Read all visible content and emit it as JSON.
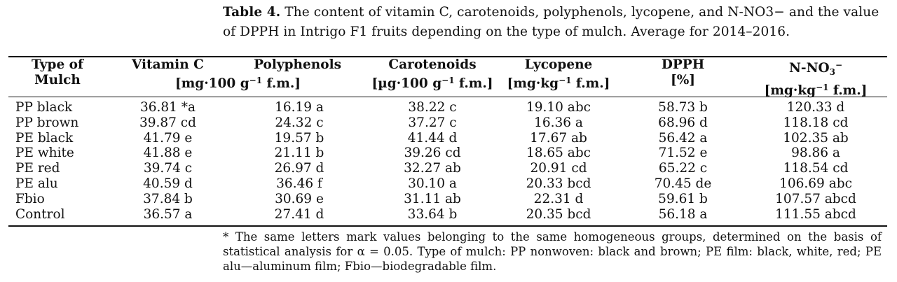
{
  "caption": {
    "label": "Table 4.",
    "text": "The content of vitamin C, carotenoids, polyphenols, lycopene, and N-NO3− and the value of DPPH in Intrigo F1 fruits depending on the type of mulch. Average for 2014–2016."
  },
  "table": {
    "headers": {
      "type_line1": "Type of",
      "type_line2": "Mulch",
      "vitc": "Vitamin C",
      "units_left": "[mg·100 g",
      "units_left_sup": "−1",
      "units_left_end": " f.m.]",
      "poly": "Polyphenols",
      "carot": "Carotenoids",
      "carot_units": "[µg·100 g",
      "carot_units_sup": "−1",
      "carot_units_end": " f.m.]",
      "lyco": "Lycopene",
      "lyco_units": "[mg·kg",
      "lyco_units_sup": "−1",
      "lyco_units_end": " f.m.]",
      "dpph": "DPPH",
      "dpph_units": "[%]",
      "nno3": "N-NO",
      "nno3_sub": "3",
      "nno3_sup": "−",
      "nno3_units": "[mg·kg",
      "nno3_units_sup": "−1",
      "nno3_units_end": " f.m.]"
    },
    "rows": [
      [
        "PP black",
        "36.81 *a",
        "16.19 a",
        "38.22 c",
        "19.10 abc",
        "58.73 b",
        "120.33 d"
      ],
      [
        "PP brown",
        "39.87 cd",
        "24.32 c",
        "37.27 c",
        "16.36 a",
        "68.96 d",
        "118.18 cd"
      ],
      [
        "PE black",
        "41.79 e",
        "19.57 b",
        "41.44 d",
        "17.67 ab",
        "56.42 a",
        "102.35 ab"
      ],
      [
        "PE white",
        "41.88 e",
        "21.11 b",
        "39.26 cd",
        "18.65 abc",
        "71.52 e",
        "98.86 a"
      ],
      [
        "PE red",
        "39.74 c",
        "26.97 d",
        "32.27 ab",
        "20.91 cd",
        "65.22 c",
        "118.54 cd"
      ],
      [
        "PE alu",
        "40.59 d",
        "36.46 f",
        "30.10 a",
        "20.33 bcd",
        "70.45 de",
        "106.69 abc"
      ],
      [
        "Fbio",
        "37.84 b",
        "30.69 e",
        "31.11 ab",
        "22.31 d",
        "59.61 b",
        "107.57 abcd"
      ],
      [
        "Control",
        "36.57 a",
        "27.41 d",
        "33.64 b",
        "20.35 bcd",
        "56.18 a",
        "111.55 abcd"
      ]
    ]
  },
  "footnote": "* The same letters mark values belonging to the same homogeneous groups, determined on the basis of statistical analysis for α = 0.05. Type of mulch: PP nonwoven: black and brown; PE film: black, white, red; PE alu—aluminum film; Fbio—biodegradable film."
}
